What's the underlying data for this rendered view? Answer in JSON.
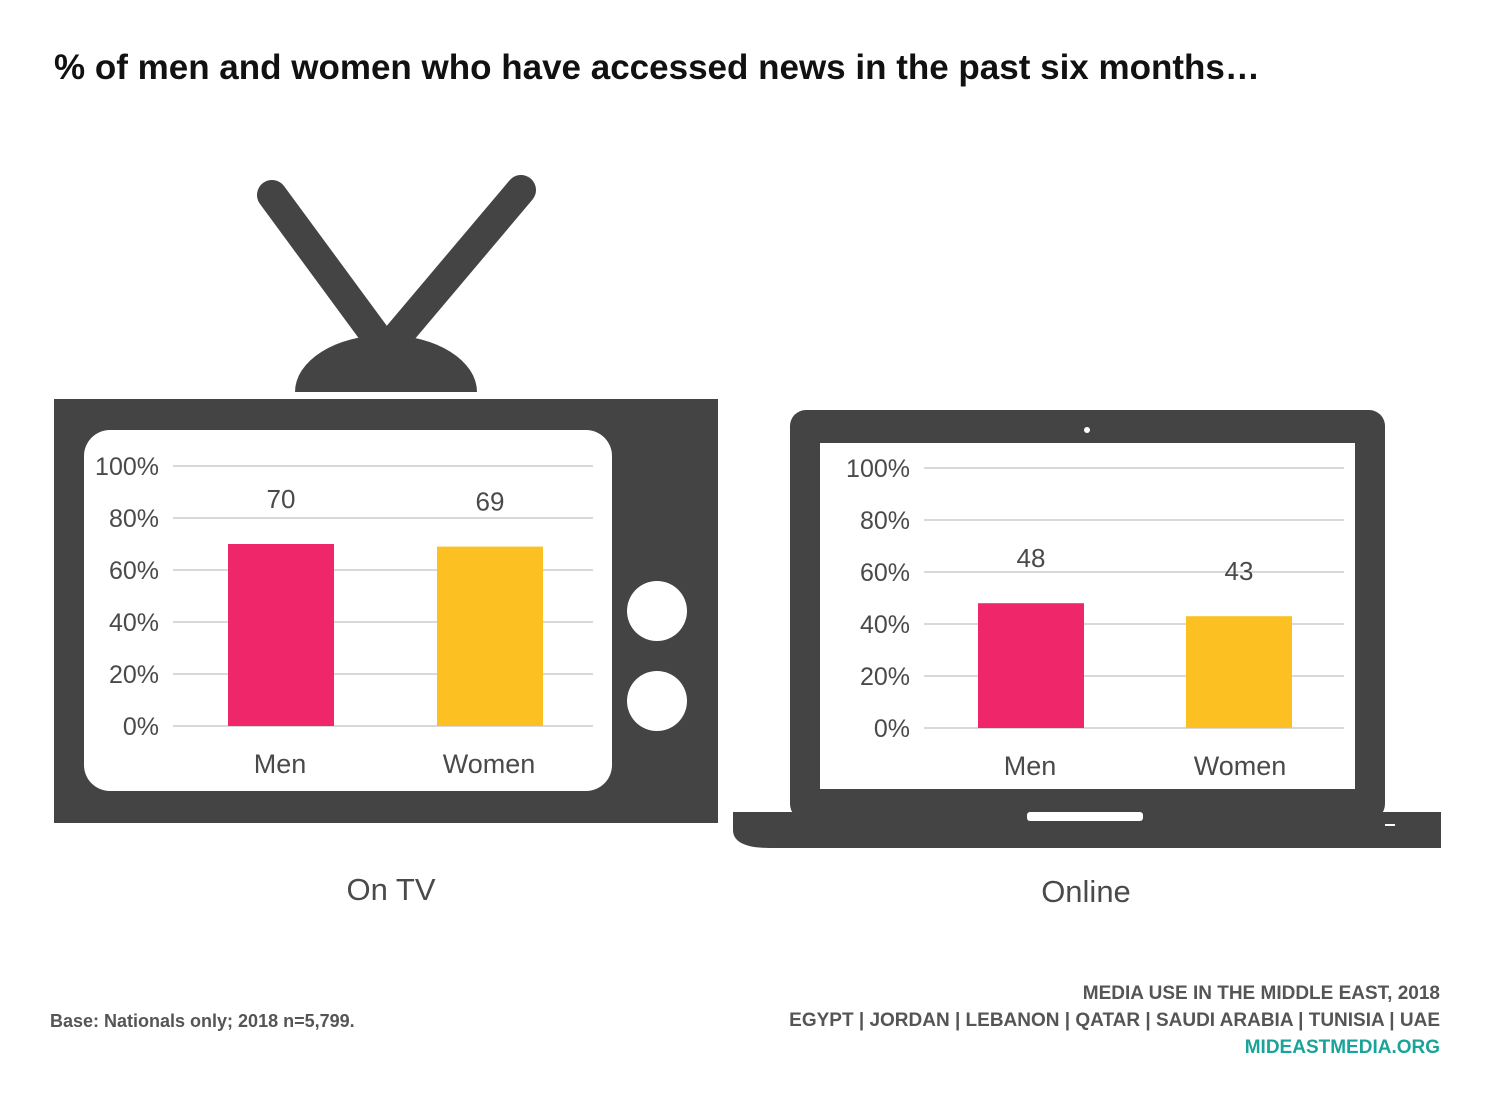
{
  "title": "% of men and women who have accessed news in the past six months…",
  "colors": {
    "device": "#444444",
    "men": "#f0266a",
    "women": "#fcc023",
    "grid": "#d9d9d9",
    "text": "#4a4a4a",
    "brand": "#1aa39a"
  },
  "icons": {
    "tv": "television-icon",
    "laptop": "laptop-icon"
  },
  "chart_data": [
    {
      "type": "bar",
      "label": "On TV",
      "categories": [
        "Men",
        "Women"
      ],
      "values": [
        70,
        69
      ],
      "yticks": [
        "0%",
        "20%",
        "40%",
        "60%",
        "80%",
        "100%"
      ],
      "ylim": [
        0,
        100
      ],
      "grid": true
    },
    {
      "type": "bar",
      "label": "Online",
      "categories": [
        "Men",
        "Women"
      ],
      "values": [
        48,
        43
      ],
      "yticks": [
        "0%",
        "20%",
        "40%",
        "60%",
        "80%",
        "100%"
      ],
      "ylim": [
        0,
        100
      ],
      "grid": true
    }
  ],
  "footer": {
    "base_note": "Base: Nationals only; 2018 n=5,799.",
    "study": "MEDIA USE IN THE MIDDLE EAST, 2018",
    "countries": "EGYPT | JORDAN | LEBANON | QATAR | SAUDI ARABIA | TUNISIA | UAE",
    "site": "MIDEASTMEDIA.ORG"
  }
}
